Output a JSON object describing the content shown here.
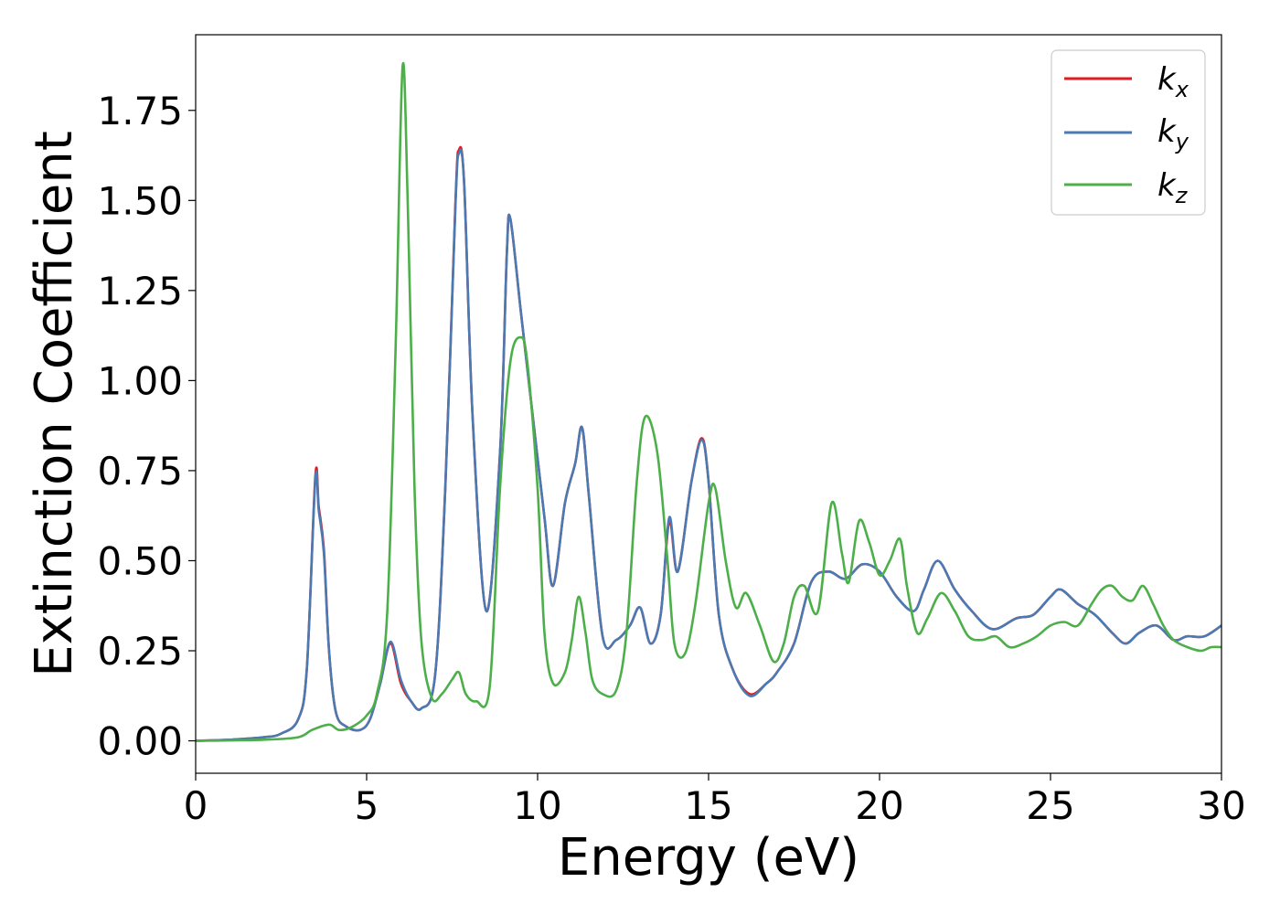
{
  "chart_data": {
    "type": "line",
    "title": "",
    "xlabel": "Energy (eV)",
    "ylabel": "Extinction Coefficient",
    "xlim": [
      0,
      30
    ],
    "ylim": [
      -0.09,
      1.96
    ],
    "xticks": [
      0,
      5,
      10,
      15,
      20,
      25,
      30
    ],
    "xtick_labels": [
      "0",
      "5",
      "10",
      "15",
      "20",
      "25",
      "30"
    ],
    "yticks": [
      0.0,
      0.25,
      0.5,
      0.75,
      1.0,
      1.25,
      1.5,
      1.75
    ],
    "ytick_labels": [
      "0.00",
      "0.25",
      "0.50",
      "0.75",
      "1.00",
      "1.25",
      "1.50",
      "1.75"
    ],
    "grid": false,
    "legend_position": "top-right",
    "series": [
      {
        "name": "k_x",
        "label_main": "k",
        "label_sub": "x",
        "color": "#e41a1c",
        "x": [
          0,
          1,
          2,
          2.5,
          3.0,
          3.25,
          3.5,
          3.6,
          3.75,
          3.9,
          4.1,
          4.4,
          4.8,
          5.1,
          5.4,
          5.7,
          6.0,
          6.3,
          6.6,
          7.0,
          7.3,
          7.6,
          7.7,
          7.85,
          8.1,
          8.5,
          8.9,
          9.1,
          9.2,
          9.5,
          9.8,
          10.2,
          10.45,
          10.8,
          11.1,
          11.3,
          11.5,
          11.9,
          12.3,
          12.7,
          13.0,
          13.3,
          13.6,
          13.85,
          14.1,
          14.5,
          14.8,
          15.0,
          15.3,
          15.7,
          16.2,
          16.7,
          17.0,
          17.5,
          18.0,
          18.5,
          19.0,
          19.5,
          20.0,
          20.5,
          21.0,
          21.3,
          21.7,
          22.2,
          22.7,
          23.3,
          24.0,
          24.5,
          25.0,
          25.3,
          25.8,
          26.3,
          26.8,
          27.2,
          27.6,
          28.1,
          28.6,
          29.0,
          29.5,
          30.0
        ],
        "y": [
          0,
          0.003,
          0.01,
          0.02,
          0.06,
          0.2,
          0.735,
          0.65,
          0.53,
          0.25,
          0.08,
          0.04,
          0.03,
          0.06,
          0.16,
          0.27,
          0.16,
          0.11,
          0.09,
          0.18,
          0.7,
          1.5,
          1.64,
          1.55,
          0.9,
          0.36,
          0.8,
          1.35,
          1.45,
          1.2,
          0.95,
          0.62,
          0.43,
          0.66,
          0.77,
          0.87,
          0.68,
          0.29,
          0.28,
          0.32,
          0.37,
          0.27,
          0.35,
          0.61,
          0.47,
          0.72,
          0.84,
          0.72,
          0.35,
          0.2,
          0.13,
          0.16,
          0.19,
          0.27,
          0.44,
          0.47,
          0.45,
          0.49,
          0.47,
          0.4,
          0.36,
          0.42,
          0.5,
          0.42,
          0.36,
          0.31,
          0.34,
          0.35,
          0.4,
          0.42,
          0.38,
          0.35,
          0.3,
          0.27,
          0.3,
          0.32,
          0.28,
          0.29,
          0.29,
          0.32
        ]
      },
      {
        "name": "k_y",
        "label_main": "k",
        "label_sub": "y",
        "color": "#4a7ab3",
        "x": [
          0,
          1,
          2,
          2.5,
          3.0,
          3.25,
          3.5,
          3.6,
          3.75,
          3.9,
          4.1,
          4.4,
          4.8,
          5.1,
          5.4,
          5.7,
          6.0,
          6.3,
          6.6,
          7.0,
          7.3,
          7.6,
          7.7,
          7.85,
          8.1,
          8.5,
          8.9,
          9.1,
          9.2,
          9.5,
          9.8,
          10.2,
          10.45,
          10.8,
          11.1,
          11.3,
          11.5,
          11.9,
          12.3,
          12.7,
          13.0,
          13.3,
          13.6,
          13.85,
          14.1,
          14.5,
          14.8,
          15.0,
          15.3,
          15.7,
          16.2,
          16.7,
          17.0,
          17.5,
          18.0,
          18.5,
          19.0,
          19.5,
          20.0,
          20.5,
          21.0,
          21.3,
          21.7,
          22.2,
          22.7,
          23.3,
          24.0,
          24.5,
          25.0,
          25.3,
          25.8,
          26.3,
          26.8,
          27.2,
          27.6,
          28.1,
          28.6,
          29.0,
          29.5,
          30.0
        ],
        "y": [
          0,
          0.003,
          0.01,
          0.02,
          0.06,
          0.2,
          0.725,
          0.64,
          0.52,
          0.25,
          0.08,
          0.04,
          0.03,
          0.06,
          0.16,
          0.275,
          0.17,
          0.11,
          0.09,
          0.18,
          0.7,
          1.49,
          1.63,
          1.55,
          0.9,
          0.36,
          0.8,
          1.35,
          1.45,
          1.2,
          0.95,
          0.62,
          0.43,
          0.66,
          0.77,
          0.87,
          0.68,
          0.29,
          0.28,
          0.32,
          0.37,
          0.27,
          0.35,
          0.62,
          0.47,
          0.72,
          0.835,
          0.72,
          0.35,
          0.2,
          0.125,
          0.16,
          0.19,
          0.27,
          0.44,
          0.47,
          0.45,
          0.49,
          0.47,
          0.4,
          0.36,
          0.42,
          0.5,
          0.42,
          0.36,
          0.31,
          0.34,
          0.35,
          0.4,
          0.42,
          0.38,
          0.35,
          0.3,
          0.27,
          0.3,
          0.32,
          0.28,
          0.29,
          0.29,
          0.32
        ]
      },
      {
        "name": "k_z",
        "label_main": "k",
        "label_sub": "z",
        "color": "#4daf4a",
        "x": [
          0,
          1,
          2,
          3.0,
          3.4,
          3.9,
          4.2,
          4.6,
          5.0,
          5.3,
          5.6,
          5.85,
          6.05,
          6.2,
          6.4,
          6.6,
          6.9,
          7.2,
          7.5,
          7.7,
          7.9,
          8.2,
          8.6,
          8.9,
          9.2,
          9.5,
          9.7,
          10.0,
          10.2,
          10.45,
          10.8,
          11.0,
          11.2,
          11.4,
          11.6,
          11.9,
          12.3,
          12.6,
          12.9,
          13.15,
          13.5,
          13.8,
          14.0,
          14.3,
          14.6,
          15.0,
          15.2,
          15.5,
          15.8,
          16.1,
          16.5,
          16.9,
          17.2,
          17.5,
          17.8,
          18.2,
          18.6,
          18.9,
          19.1,
          19.4,
          19.7,
          20.0,
          20.3,
          20.6,
          20.8,
          21.1,
          21.4,
          21.8,
          22.2,
          22.6,
          23.0,
          23.4,
          23.8,
          24.2,
          24.6,
          25.0,
          25.4,
          25.8,
          26.2,
          26.5,
          26.8,
          27.1,
          27.4,
          27.7,
          28.0,
          28.3,
          28.6,
          29.0,
          29.4,
          29.7,
          30.0
        ],
        "y": [
          0,
          0.001,
          0.003,
          0.01,
          0.03,
          0.045,
          0.03,
          0.04,
          0.07,
          0.13,
          0.35,
          1.1,
          1.87,
          1.5,
          0.7,
          0.28,
          0.12,
          0.13,
          0.17,
          0.19,
          0.13,
          0.11,
          0.15,
          0.7,
          1.05,
          1.12,
          1.05,
          0.7,
          0.3,
          0.16,
          0.19,
          0.28,
          0.4,
          0.3,
          0.17,
          0.13,
          0.14,
          0.3,
          0.72,
          0.9,
          0.8,
          0.5,
          0.27,
          0.24,
          0.37,
          0.66,
          0.7,
          0.5,
          0.37,
          0.41,
          0.32,
          0.22,
          0.27,
          0.4,
          0.43,
          0.36,
          0.66,
          0.52,
          0.44,
          0.61,
          0.55,
          0.46,
          0.5,
          0.56,
          0.43,
          0.3,
          0.34,
          0.41,
          0.36,
          0.29,
          0.28,
          0.29,
          0.26,
          0.27,
          0.29,
          0.32,
          0.33,
          0.32,
          0.38,
          0.42,
          0.43,
          0.4,
          0.39,
          0.43,
          0.38,
          0.32,
          0.28,
          0.26,
          0.25,
          0.26,
          0.26
        ]
      }
    ]
  }
}
